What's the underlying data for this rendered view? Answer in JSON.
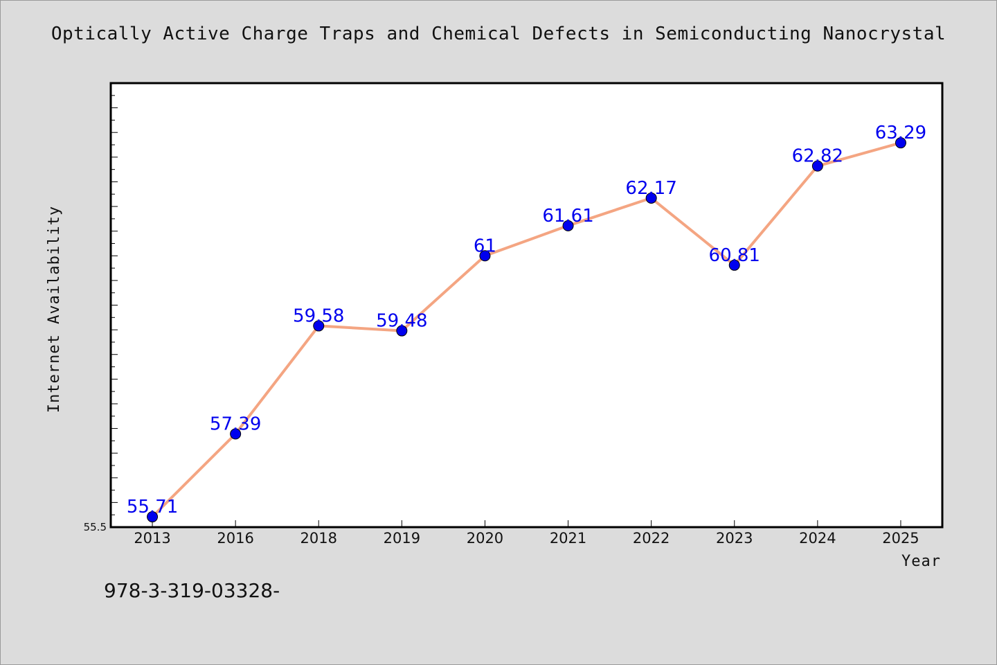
{
  "chart_data": {
    "type": "line",
    "title": "Optically Active Charge Traps and Chemical Defects in Semiconducting Nanocrystal",
    "xlabel": "Year",
    "ylabel": "Internet Availability",
    "categories": [
      "2013",
      "2016",
      "2018",
      "2019",
      "2020",
      "2021",
      "2022",
      "2023",
      "2024",
      "2025"
    ],
    "values": [
      55.71,
      57.39,
      59.58,
      59.48,
      61,
      61.61,
      62.17,
      60.81,
      62.82,
      63.29
    ],
    "data_labels": [
      "55.71",
      "57.39",
      "59.58",
      "59.48",
      "61",
      "61.61",
      "62.17",
      "60.81",
      "62.82",
      "63.29"
    ],
    "ylim": [
      55.5,
      64.5
    ],
    "y_tick_label": "55.5",
    "grid": false,
    "legend": "none",
    "line_color": "#f4a582",
    "marker_color": "#0000ee",
    "label_color": "#0000ee",
    "background_color": "#dcdcdc",
    "plot_background": "#ffffff"
  },
  "footer": {
    "text": "978-3-319-03328-"
  }
}
